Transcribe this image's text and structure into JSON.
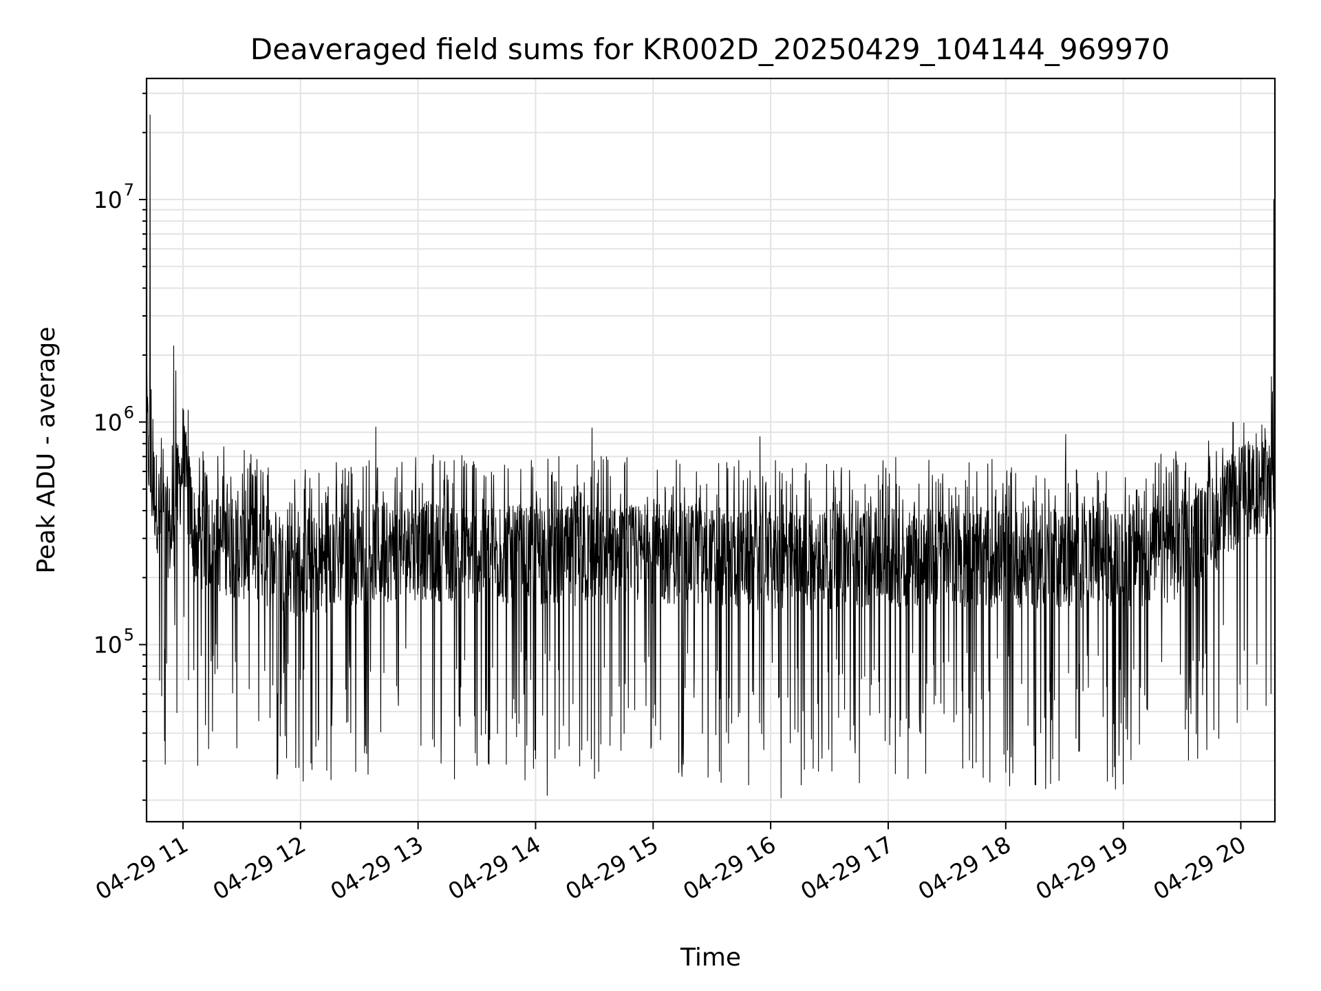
{
  "chart_data": {
    "type": "line",
    "title": "Deaveraged field sums for KR002D_20250429_104144_969970",
    "xlabel": "Time",
    "ylabel": "Peak ADU - average",
    "yscale": "log",
    "ylim": [
      16000,
      35000000
    ],
    "xlim_hours": [
      10.69,
      20.29
    ],
    "grid": true,
    "x_ticks": [
      {
        "value": 11,
        "label": "04-29 11"
      },
      {
        "value": 12,
        "label": "04-29 12"
      },
      {
        "value": 13,
        "label": "04-29 13"
      },
      {
        "value": 14,
        "label": "04-29 14"
      },
      {
        "value": 15,
        "label": "04-29 15"
      },
      {
        "value": 16,
        "label": "04-29 16"
      },
      {
        "value": 17,
        "label": "04-29 17"
      },
      {
        "value": 18,
        "label": "04-29 18"
      },
      {
        "value": 19,
        "label": "04-29 19"
      },
      {
        "value": 20,
        "label": "04-29 20"
      }
    ],
    "y_ticks": [
      {
        "value": 100000,
        "base": "10",
        "exp": "5"
      },
      {
        "value": 1000000,
        "base": "10",
        "exp": "6"
      },
      {
        "value": 10000000,
        "base": "10",
        "exp": "7"
      }
    ],
    "series": [
      {
        "name": "field sums",
        "color": "#000000",
        "profile_hours": [
          10.69,
          10.72,
          10.8,
          10.9,
          11.0,
          11.1,
          11.5,
          12.0,
          12.5,
          13.0,
          14.0,
          15.0,
          16.0,
          17.0,
          18.0,
          19.0,
          19.5,
          19.8,
          20.0,
          20.29
        ],
        "profile_median": [
          1100000,
          600000,
          420000,
          330000,
          700000,
          320000,
          280000,
          230000,
          270000,
          280000,
          260000,
          270000,
          250000,
          260000,
          260000,
          250000,
          280000,
          380000,
          500000,
          520000
        ],
        "spikes": [
          {
            "x": 10.72,
            "y": 24000000
          },
          {
            "x": 10.73,
            "y": 1400000
          },
          {
            "x": 10.92,
            "y": 2200000
          },
          {
            "x": 10.94,
            "y": 1700000
          },
          {
            "x": 11.0,
            "y": 1150000
          },
          {
            "x": 20.28,
            "y": 10000000
          },
          {
            "x": 20.26,
            "y": 1600000
          },
          {
            "x": 10.85,
            "y": 29000
          },
          {
            "x": 14.1,
            "y": 21000
          },
          {
            "x": 14.5,
            "y": 25000
          },
          {
            "x": 15.58,
            "y": 24000
          },
          {
            "x": 16.09,
            "y": 20500
          },
          {
            "x": 18.34,
            "y": 22500
          },
          {
            "x": 18.06,
            "y": 26500
          },
          {
            "x": 11.96,
            "y": 28000
          },
          {
            "x": 17.17,
            "y": 25000
          },
          {
            "x": 12.64,
            "y": 950000
          },
          {
            "x": 15.91,
            "y": 860000
          },
          {
            "x": 18.51,
            "y": 880000
          },
          {
            "x": 14.48,
            "y": 940000
          }
        ]
      }
    ]
  }
}
